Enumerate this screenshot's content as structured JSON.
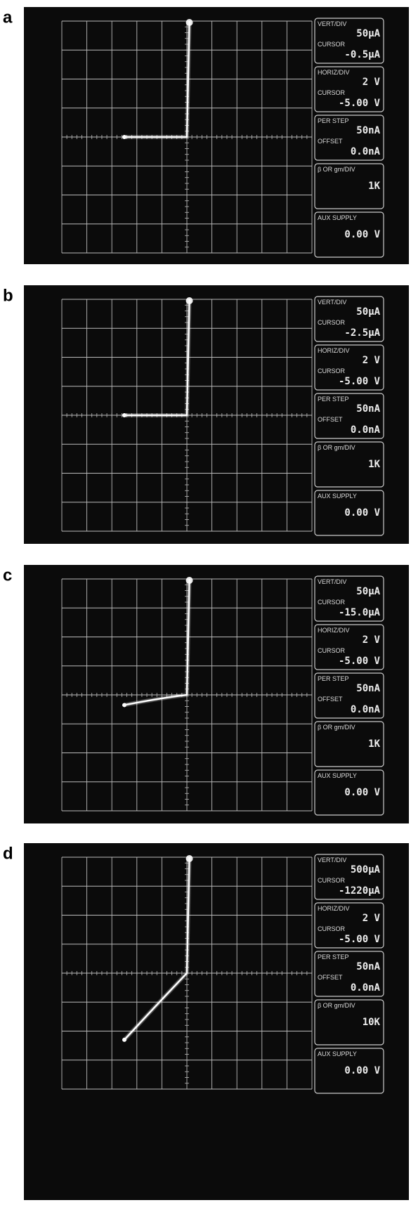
{
  "panels": [
    {
      "label": "a",
      "readouts": [
        {
          "title": "VERT/DIV",
          "value": "50μA",
          "sub_title": "CURSOR",
          "sub_value": "-0.5μA"
        },
        {
          "title": "HORIZ/DIV",
          "value": "2 V",
          "sub_title": "CURSOR",
          "sub_value": "-5.00 V"
        },
        {
          "title": "PER STEP",
          "value": "50nA",
          "sub_title": "OFFSET",
          "sub_value": "0.0nA"
        },
        {
          "title": "β OR gm/DIV",
          "value": "1K"
        },
        {
          "title": "AUX SUPPLY",
          "value": "0.00 V"
        }
      ]
    },
    {
      "label": "b",
      "readouts": [
        {
          "title": "VERT/DIV",
          "value": "50μA",
          "sub_title": "CURSOR",
          "sub_value": "-2.5μA"
        },
        {
          "title": "HORIZ/DIV",
          "value": "2 V",
          "sub_title": "CURSOR",
          "sub_value": "-5.00 V"
        },
        {
          "title": "PER STEP",
          "value": "50nA",
          "sub_title": "OFFSET",
          "sub_value": "0.0nA"
        },
        {
          "title": "β OR gm/DIV",
          "value": "1K"
        },
        {
          "title": "AUX SUPPLY",
          "value": "0.00 V"
        }
      ]
    },
    {
      "label": "c",
      "readouts": [
        {
          "title": "VERT/DIV",
          "value": "50μA",
          "sub_title": "CURSOR",
          "sub_value": "-15.0μA"
        },
        {
          "title": "HORIZ/DIV",
          "value": "2 V",
          "sub_title": "CURSOR",
          "sub_value": "-5.00 V"
        },
        {
          "title": "PER STEP",
          "value": "50nA",
          "sub_title": "OFFSET",
          "sub_value": "0.0nA"
        },
        {
          "title": "β OR gm/DIV",
          "value": "1K"
        },
        {
          "title": "AUX SUPPLY",
          "value": "0.00 V"
        }
      ]
    },
    {
      "label": "d",
      "readouts": [
        {
          "title": "VERT/DIV",
          "value": "500μA",
          "sub_title": "CURSOR",
          "sub_value": "-1220μA"
        },
        {
          "title": "HORIZ/DIV",
          "value": "2 V",
          "sub_title": "CURSOR",
          "sub_value": "-5.00 V"
        },
        {
          "title": "PER STEP",
          "value": "50nA",
          "sub_title": "OFFSET",
          "sub_value": "0.0nA"
        },
        {
          "title": "β OR gm/DIV",
          "value": "10K"
        },
        {
          "title": "AUX SUPPLY",
          "value": "0.00 V"
        }
      ]
    }
  ]
}
